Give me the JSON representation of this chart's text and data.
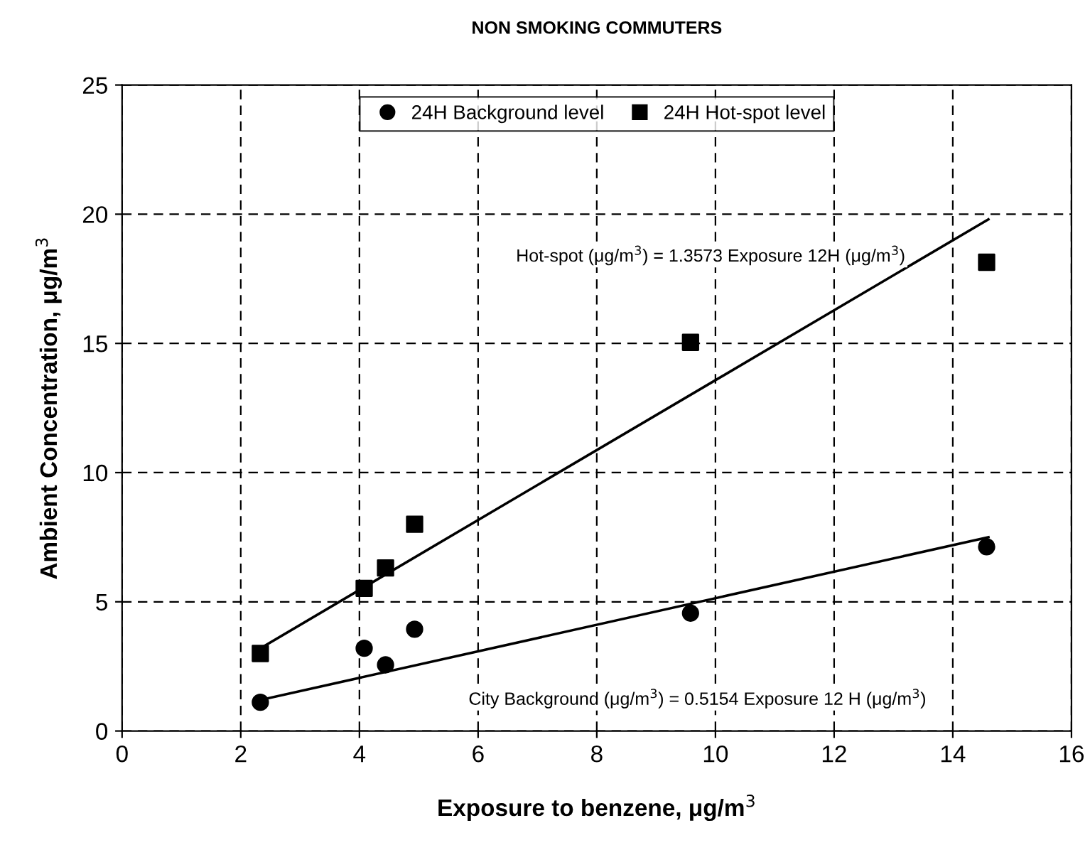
{
  "chart_data": {
    "type": "scatter",
    "title": "NON SMOKING COMMUTERS",
    "xlabel": "Exposure to benzene, μg/m$^{3}$",
    "ylabel": "Ambient Concentration, μg/m$^{3}$",
    "series": [
      {
        "name": "24H Background level",
        "color": "#000000",
        "marker": "circle",
        "x": [
          2.33,
          4.08,
          4.44,
          4.93,
          9.58,
          14.57
        ],
        "values": [
          1.11,
          3.2,
          2.56,
          3.94,
          4.56,
          7.13
        ]
      },
      {
        "name": "24H Hot-spot level",
        "color": "#000000",
        "marker": "square",
        "x": [
          2.33,
          4.08,
          4.44,
          4.93,
          9.58,
          14.57
        ],
        "values": [
          3.0,
          5.52,
          6.31,
          8.0,
          15.04,
          18.14
        ]
      },
      {
        "type": "line",
        "color": "#000000",
        "marker": "none",
        "x": [
          2.33,
          14.6
        ],
        "values": [
          3.2,
          19.8
        ]
      },
      {
        "type": "line",
        "color": "#000000",
        "marker": "none",
        "x": [
          2.33,
          14.6
        ],
        "values": [
          1.2,
          7.5
        ]
      }
    ],
    "annotations": [
      "Hot-spot (μg/m$^{3}$) = 1.3573 Exposure 12H (μg/m$^{3}$)",
      "City Background (μg/m$^{3}$) = 0.5154 Exposure 12 H (μg/m$^{3}$)"
    ],
    "xlim": [
      0,
      16
    ],
    "xticks": [
      0,
      2,
      4,
      6,
      8,
      10,
      12,
      14,
      16
    ],
    "ylim": [
      0,
      25
    ],
    "yticks": [
      0,
      5,
      10,
      15,
      20,
      25
    ],
    "grid": true,
    "legend": "top"
  }
}
